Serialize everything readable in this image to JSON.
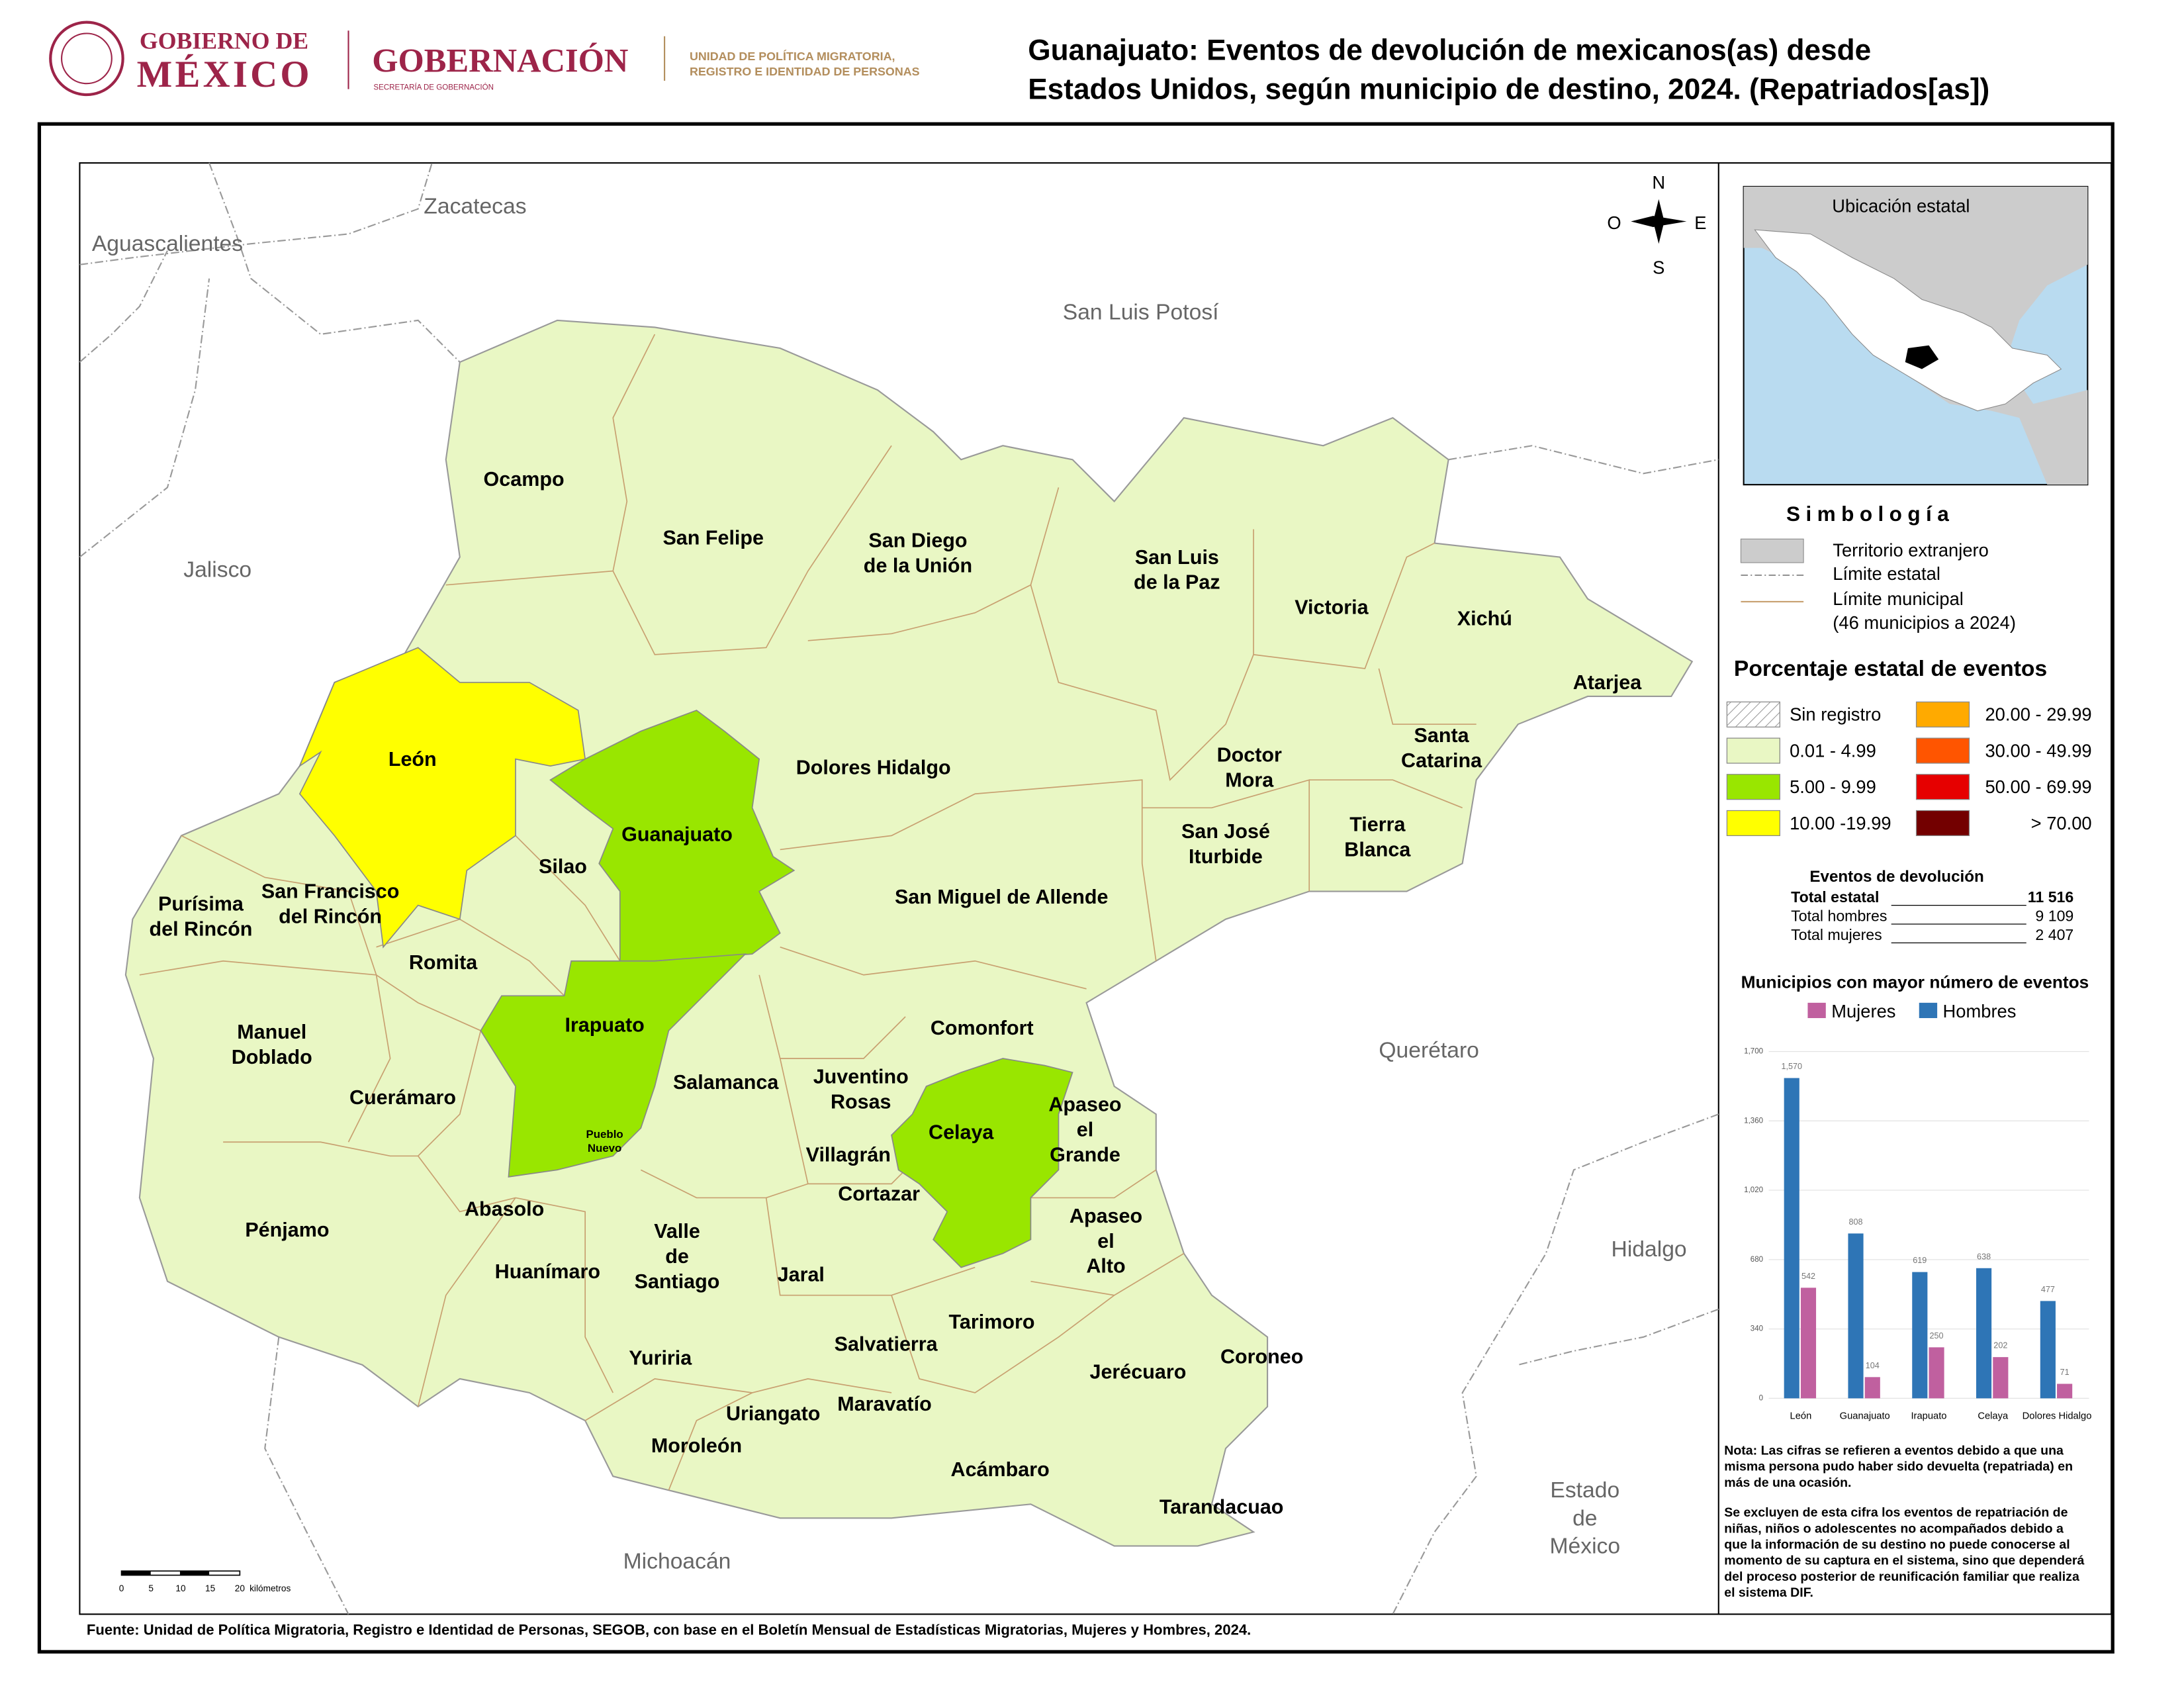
{
  "header": {
    "logo": {
      "line1": "GOBIERNO DE",
      "line2": "MÉXICO",
      "agency": "GOBERNACIÓN",
      "agency_sub": "SECRETARÍA DE GOBERNACIÓN",
      "unit": [
        "UNIDAD DE POLÍTICA MIGRATORIA,",
        "REGISTRO E IDENTIDAD DE PERSONAS"
      ]
    },
    "title": [
      "Guanajuato: Eventos de devolución de mexicanos(as) desde",
      "Estados Unidos, según municipio de destino, 2024. (Repatriados[as])"
    ]
  },
  "map": {
    "neighbors": [
      [
        "Zacatecas"
      ],
      [
        "Aguascalientes"
      ],
      [
        "San Luis Potosí"
      ],
      [
        "Jalisco"
      ],
      [
        "Querétaro"
      ],
      [
        "Hidalgo"
      ],
      [
        "Estado",
        "de",
        "México"
      ],
      [
        "Michoacán"
      ]
    ],
    "municipalities": [
      [
        "Ocampo"
      ],
      [
        "San Felipe"
      ],
      [
        "San Diego",
        "de la Unión"
      ],
      [
        "San Luis",
        "de la Paz"
      ],
      [
        "Victoria"
      ],
      [
        "Xichú"
      ],
      [
        "Atarjea"
      ],
      [
        "León"
      ],
      [
        "Guanajuato"
      ],
      [
        "Dolores Hidalgo"
      ],
      [
        "Doctor",
        "Mora"
      ],
      [
        "Santa",
        "Catarina"
      ],
      [
        "Tierra",
        "Blanca"
      ],
      [
        "San José",
        "Iturbide"
      ],
      [
        "Silao"
      ],
      [
        "Purísima",
        "del Rincón"
      ],
      [
        "San Francisco",
        "del Rincón"
      ],
      [
        "San Miguel de Allende"
      ],
      [
        "Romita"
      ],
      [
        "Manuel",
        "Doblado"
      ],
      [
        "Irapuato"
      ],
      [
        "Comonfort"
      ],
      [
        "Salamanca"
      ],
      [
        "Juventino",
        "Rosas"
      ],
      [
        "Apaseo",
        "el",
        "Grande"
      ],
      [
        "Celaya"
      ],
      [
        "Cuerámaro"
      ],
      [
        "Villagrán"
      ],
      [
        "Cortazar"
      ],
      [
        "Pénjamo"
      ],
      [
        "Abasolo"
      ],
      [
        "Valle",
        "de",
        "Santiago"
      ],
      [
        "Apaseo",
        "el",
        "Alto"
      ],
      [
        "Huanímaro"
      ],
      [
        "Jaral"
      ],
      [
        "Tarimoro"
      ],
      [
        "Salvatierra"
      ],
      [
        "Yuriria"
      ],
      [
        "Coroneo"
      ],
      [
        "Jerécuaro"
      ],
      [
        "Maravatío"
      ],
      [
        "Uriangato"
      ],
      [
        "Moroleón"
      ],
      [
        "Acámbaro"
      ],
      [
        "Tarandacuao"
      ]
    ],
    "small_labels": [
      [
        "Pueblo",
        "Nuevo"
      ]
    ],
    "compass": {
      "n": "N",
      "s": "S",
      "e": "E",
      "w": "O"
    },
    "scale": {
      "ticks": [
        "0",
        "5",
        "10",
        "15",
        "20"
      ],
      "unit": "kilómetros"
    }
  },
  "inset": {
    "title": "Ubicación estatal"
  },
  "legend": {
    "title": "Simbología",
    "items": [
      "Territorio extranjero",
      "Límite estatal",
      "Límite municipal",
      "(46 municipios a 2024)"
    ],
    "classes_title": "Porcentaje estatal de eventos",
    "classes": [
      {
        "label": "Sin registro",
        "color": "#ffffff"
      },
      {
        "label": "0.01  - 4.99",
        "color": "#e9f7c4"
      },
      {
        "label": "5.00  - 9.99",
        "color": "#99e600"
      },
      {
        "label": "10.00 -19.99",
        "color": "#ffff00"
      },
      {
        "label": "20.00 - 29.99",
        "color": "#ffaa00"
      },
      {
        "label": "30.00 - 49.99",
        "color": "#ff5500"
      },
      {
        "label": "50.00 - 69.99",
        "color": "#e60000"
      },
      {
        "label": "> 70.00",
        "color": "#730000"
      }
    ]
  },
  "totals": {
    "title": "Eventos de devolución",
    "rows": [
      [
        "Total estatal",
        "11 516"
      ],
      [
        "Total hombres",
        "9 109"
      ],
      [
        "Total mujeres",
        "2 407"
      ]
    ]
  },
  "chart_data": {
    "type": "bar",
    "title": "Municipios con mayor número de eventos",
    "categories": [
      "León",
      "Guanajuato",
      "Irapuato",
      "Celaya",
      "Dolores Hidalgo"
    ],
    "series": [
      {
        "name": "Mujeres",
        "color": "#c0609f",
        "values": [
          542,
          104,
          250,
          202,
          71
        ]
      },
      {
        "name": "Hombres",
        "color": "#2e75b6",
        "values": [
          1570,
          808,
          619,
          638,
          477
        ],
        "value_labels": [
          "1,570",
          "808",
          "619",
          "638",
          "477"
        ]
      }
    ],
    "ylim": [
      0,
      1700
    ],
    "yticks": [
      0,
      340,
      680,
      {
        "value": 1020,
        "label": "1,020"
      },
      {
        "value": 1360,
        "label": "1,360"
      },
      {
        "value": 1700,
        "label": "1,700"
      }
    ],
    "grid": true
  },
  "notes": [
    "Nota: Las cifras se refieren a eventos debido a que una",
    "misma persona pudo haber sido devuelta (repatriada) en",
    "más de una ocasión.",
    "Se excluyen de esta cifra los eventos de repatriación de",
    "niñas, niños o adolescentes no acompañados debido a",
    "que la información de su destino no puede conocerse al",
    "momento de su captura en el sistema, sino que dependerá",
    "del proceso posterior de reunificación familiar que realiza",
    "el sistema DIF."
  ],
  "source": "Fuente: Unidad de Política Migratoria, Registro e Identidad de Personas, SEGOB, con base en el Boletín Mensual de Estadísticas Migratorias, Mujeres y Hombres, 2024."
}
